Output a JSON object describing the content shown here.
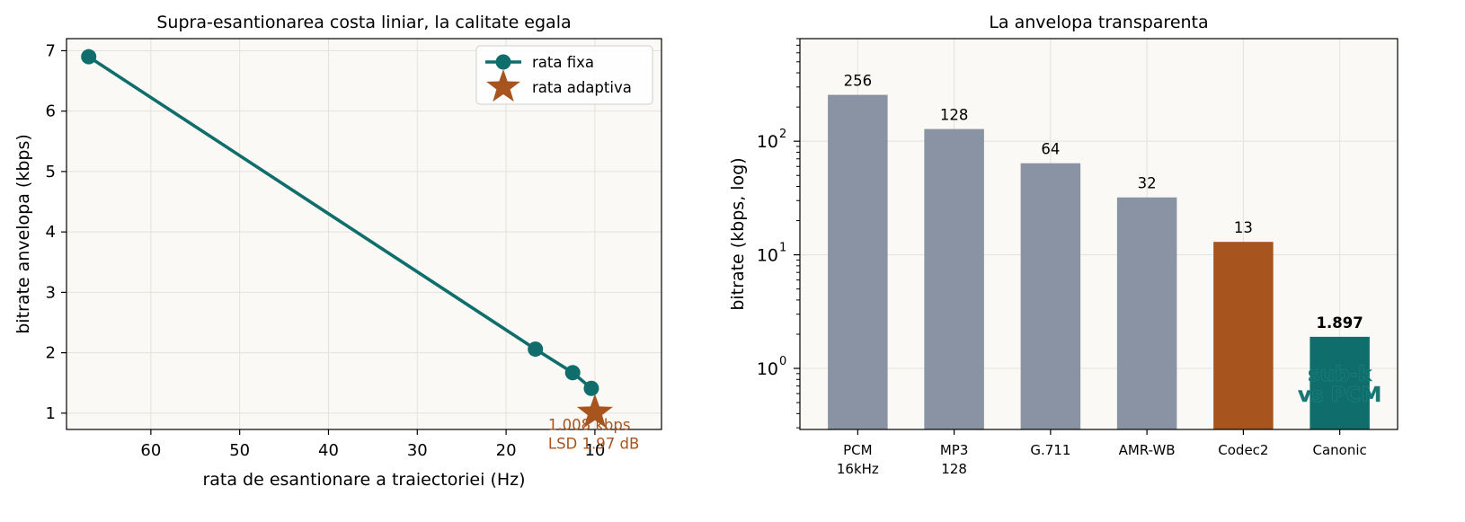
{
  "colors": {
    "teal": "#0f6e6b",
    "rust": "#a8541e",
    "gray": "#8a93a3",
    "panel_bg": "#faf9f5",
    "grid": "#e4e2dc",
    "axis": "#000000"
  },
  "chart_data": [
    {
      "type": "line",
      "title": "Supra-esantionarea costa liniar, la calitate egala",
      "xlabel": "rata de esantionare a traiectoriei (Hz)",
      "ylabel": "bitrate anvelopa (kbps)",
      "x_reversed": true,
      "xlim": [
        69.5,
        2.5
      ],
      "ylim": [
        0.73,
        7.2
      ],
      "xticks": [
        60,
        50,
        40,
        30,
        20,
        10
      ],
      "yticks": [
        1,
        2,
        3,
        4,
        5,
        6,
        7
      ],
      "grid": true,
      "legend": "top-right",
      "series": [
        {
          "name": "rata fixa",
          "marker": "circle",
          "x": [
            67,
            16.7,
            12.5,
            10.4
          ],
          "y": [
            6.9,
            2.06,
            1.67,
            1.41
          ]
        },
        {
          "name": "rata adaptiva",
          "marker": "star",
          "x": [
            10
          ],
          "y": [
            1.008
          ]
        }
      ],
      "annotation": {
        "lines": [
          "1.008 kbps",
          "LSD 1.97 dB"
        ],
        "x": 10,
        "y": 1.008
      }
    },
    {
      "type": "bar",
      "title": "La anvelopa transparenta",
      "xlabel": "",
      "ylabel": "bitrate (kbps, log)",
      "log_y": true,
      "ylim": [
        0.29,
        800
      ],
      "yticks": [
        1,
        10,
        100
      ],
      "ytick_labels": [
        {
          "base": "10",
          "exp": "0"
        },
        {
          "base": "10",
          "exp": "1"
        },
        {
          "base": "10",
          "exp": "2"
        }
      ],
      "grid": true,
      "categories": [
        {
          "lines": [
            "PCM",
            "16kHz"
          ]
        },
        {
          "lines": [
            "MP3",
            "128"
          ]
        },
        {
          "lines": [
            "G.711"
          ]
        },
        {
          "lines": [
            "AMR-WB"
          ]
        },
        {
          "lines": [
            "Codec2"
          ]
        },
        {
          "lines": [
            "Canonic"
          ]
        }
      ],
      "values": [
        256,
        128,
        64,
        32,
        13,
        1.897
      ],
      "value_labels": [
        "256",
        "128",
        "64",
        "32",
        "13",
        "1.897"
      ],
      "bar_colors": [
        "gray",
        "gray",
        "gray",
        "gray",
        "rust",
        "teal"
      ],
      "bold_labels": [
        false,
        false,
        false,
        false,
        false,
        true
      ],
      "watermark": {
        "lines": [
          "sub-k",
          "vs PCM"
        ]
      }
    }
  ]
}
